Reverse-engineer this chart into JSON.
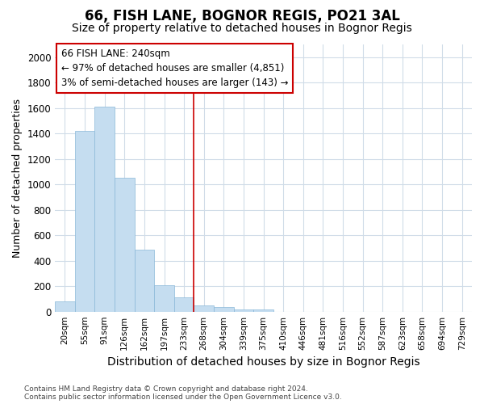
{
  "title": "66, FISH LANE, BOGNOR REGIS, PO21 3AL",
  "subtitle": "Size of property relative to detached houses in Bognor Regis",
  "xlabel": "Distribution of detached houses by size in Bognor Regis",
  "ylabel": "Number of detached properties",
  "categories": [
    "20sqm",
    "55sqm",
    "91sqm",
    "126sqm",
    "162sqm",
    "197sqm",
    "233sqm",
    "268sqm",
    "304sqm",
    "339sqm",
    "375sqm",
    "410sqm",
    "446sqm",
    "481sqm",
    "516sqm",
    "552sqm",
    "587sqm",
    "623sqm",
    "658sqm",
    "694sqm",
    "729sqm"
  ],
  "values": [
    80,
    1420,
    1610,
    1050,
    490,
    205,
    110,
    50,
    35,
    20,
    15,
    0,
    0,
    0,
    0,
    0,
    0,
    0,
    0,
    0,
    0
  ],
  "bar_color": "#c5ddf0",
  "bar_edge_color": "#8ab8d8",
  "vline_x": 6.5,
  "vline_color": "#cc0000",
  "ylim": [
    0,
    2100
  ],
  "yticks": [
    0,
    200,
    400,
    600,
    800,
    1000,
    1200,
    1400,
    1600,
    1800,
    2000
  ],
  "annotation_text_line1": "66 FISH LANE: 240sqm",
  "annotation_text_line2": "← 97% of detached houses are smaller (4,851)",
  "annotation_text_line3": "3% of semi-detached houses are larger (143) →",
  "bg_color": "#ffffff",
  "plot_bg_color": "#ffffff",
  "grid_color": "#d0dce8",
  "footer_line1": "Contains HM Land Registry data © Crown copyright and database right 2024.",
  "footer_line2": "Contains public sector information licensed under the Open Government Licence v3.0.",
  "title_fontsize": 12,
  "subtitle_fontsize": 10,
  "ylabel_fontsize": 9,
  "xlabel_fontsize": 10
}
